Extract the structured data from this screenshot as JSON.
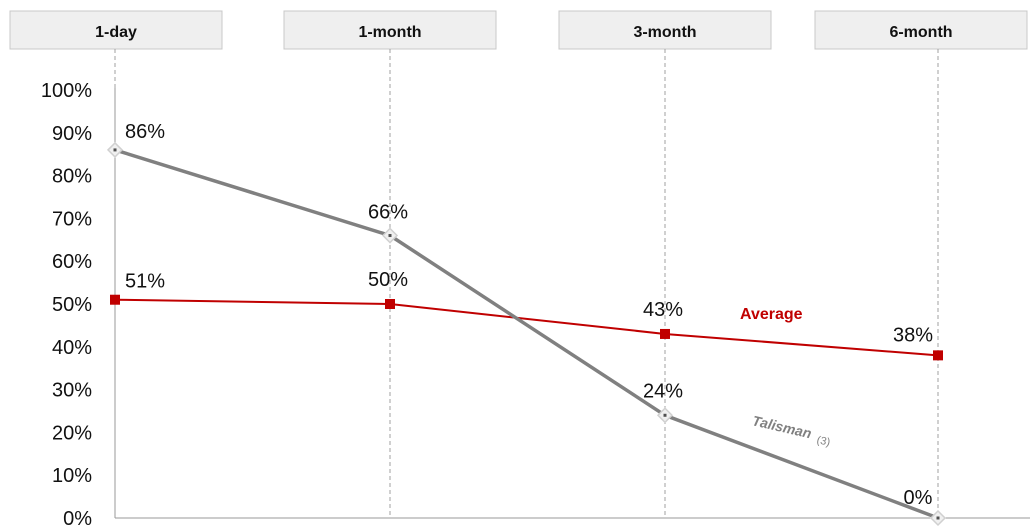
{
  "chart_data": {
    "type": "line",
    "categories": [
      "1-day",
      "1-month",
      "3-month",
      "6-month"
    ],
    "ylim": [
      0,
      100
    ],
    "yticks": [
      "0%",
      "10%",
      "20%",
      "30%",
      "40%",
      "50%",
      "60%",
      "70%",
      "80%",
      "90%",
      "100%"
    ],
    "grid": false,
    "series": [
      {
        "name": "Average",
        "values": [
          51,
          50,
          43,
          38
        ],
        "labels": [
          "51%",
          "50%",
          "43%",
          "38%"
        ],
        "color": "#c00000",
        "marker": "square"
      },
      {
        "name": "Talisman",
        "name_suffix": "(3)",
        "values": [
          86,
          66,
          24,
          0
        ],
        "labels": [
          "86%",
          "66%",
          "24%",
          "0%"
        ],
        "color": "#808080",
        "marker": "diamond"
      }
    ]
  }
}
